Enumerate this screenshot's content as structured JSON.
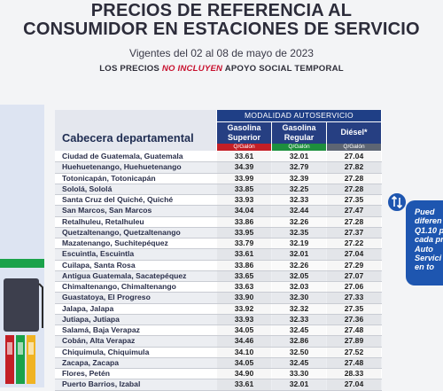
{
  "header": {
    "title_line1": "PRECIOS DE REFERENCIA AL",
    "title_line2": "CONSUMIDOR EN ESTACIONES DE SERVICIO",
    "vigencia": "Vigentes del 02 al 08 de mayo de 2023",
    "note_prefix": "LOS PRECIOS",
    "note_emphasis": "NO INCLUYEN",
    "note_suffix": "APOYO SOCIAL TEMPORAL"
  },
  "table": {
    "cabecera_label": "Cabecera departamental",
    "modalidad_label": "MODALIDAD AUTOSERVICIO",
    "columns": [
      {
        "name_line1": "Gasolina",
        "name_line2": "Superior",
        "unit": "Q/Galón",
        "color": "#c31f26"
      },
      {
        "name_line1": "Gasolina",
        "name_line2": "Regular",
        "unit": "Q/Galón",
        "color": "#1e8f3d"
      },
      {
        "name_line1": "Diésel*",
        "name_line2": "",
        "unit": "Q/Galón",
        "color": "#5d6573"
      }
    ],
    "rows": [
      {
        "dept": "Ciudad de Guatemala, Guatemala",
        "superior": "33.61",
        "regular": "32.01",
        "diesel": "27.04"
      },
      {
        "dept": "Huehuetenango, Huehuetenango",
        "superior": "34.39",
        "regular": "32.79",
        "diesel": "27.82"
      },
      {
        "dept": "Totonicapán, Totonicapán",
        "superior": "33.99",
        "regular": "32.39",
        "diesel": "27.28"
      },
      {
        "dept": "Sololá, Sololá",
        "superior": "33.85",
        "regular": "32.25",
        "diesel": "27.28"
      },
      {
        "dept": "Santa Cruz del Quiché, Quiché",
        "superior": "33.93",
        "regular": "32.33",
        "diesel": "27.35"
      },
      {
        "dept": "San Marcos, San Marcos",
        "superior": "34.04",
        "regular": "32.44",
        "diesel": "27.47"
      },
      {
        "dept": "Retalhuleu, Retalhuleu",
        "superior": "33.86",
        "regular": "32.26",
        "diesel": "27.28"
      },
      {
        "dept": "Quetzaltenango, Quetzaltenango",
        "superior": "33.95",
        "regular": "32.35",
        "diesel": "27.37"
      },
      {
        "dept": "Mazatenango, Suchitepéquez",
        "superior": "33.79",
        "regular": "32.19",
        "diesel": "27.22"
      },
      {
        "dept": "Escuintla, Escuintla",
        "superior": "33.61",
        "regular": "32.01",
        "diesel": "27.04"
      },
      {
        "dept": "Cuilapa, Santa Rosa",
        "superior": "33.86",
        "regular": "32.26",
        "diesel": "27.29"
      },
      {
        "dept": "Antigua Guatemala, Sacatepéquez",
        "superior": "33.65",
        "regular": "32.05",
        "diesel": "27.07"
      },
      {
        "dept": "Chimaltenango, Chimaltenango",
        "superior": "33.63",
        "regular": "32.03",
        "diesel": "27.06"
      },
      {
        "dept": "Guastatoya, El Progreso",
        "superior": "33.90",
        "regular": "32.30",
        "diesel": "27.33"
      },
      {
        "dept": "Jalapa, Jalapa",
        "superior": "33.92",
        "regular": "32.32",
        "diesel": "27.35"
      },
      {
        "dept": "Jutiapa, Jutiapa",
        "superior": "33.93",
        "regular": "32.33",
        "diesel": "27.36"
      },
      {
        "dept": "Salamá, Baja Verapaz",
        "superior": "34.05",
        "regular": "32.45",
        "diesel": "27.48"
      },
      {
        "dept": "Cobán, Alta Verapaz",
        "superior": "34.46",
        "regular": "32.86",
        "diesel": "27.89"
      },
      {
        "dept": "Chiquimula, Chiquimula",
        "superior": "34.10",
        "regular": "32.50",
        "diesel": "27.52"
      },
      {
        "dept": "Zacapa, Zacapa",
        "superior": "34.05",
        "regular": "32.45",
        "diesel": "27.48"
      },
      {
        "dept": "Flores, Petén",
        "superior": "34.90",
        "regular": "33.30",
        "diesel": "28.33"
      },
      {
        "dept": "Puerto Barrios, Izabal",
        "superior": "33.61",
        "regular": "32.01",
        "diesel": "27.04"
      }
    ]
  },
  "promo": {
    "lines": [
      "Pued",
      "diferen",
      "Q1.10 p",
      "cada pr",
      "Auto",
      "Servici",
      "en to"
    ]
  }
}
